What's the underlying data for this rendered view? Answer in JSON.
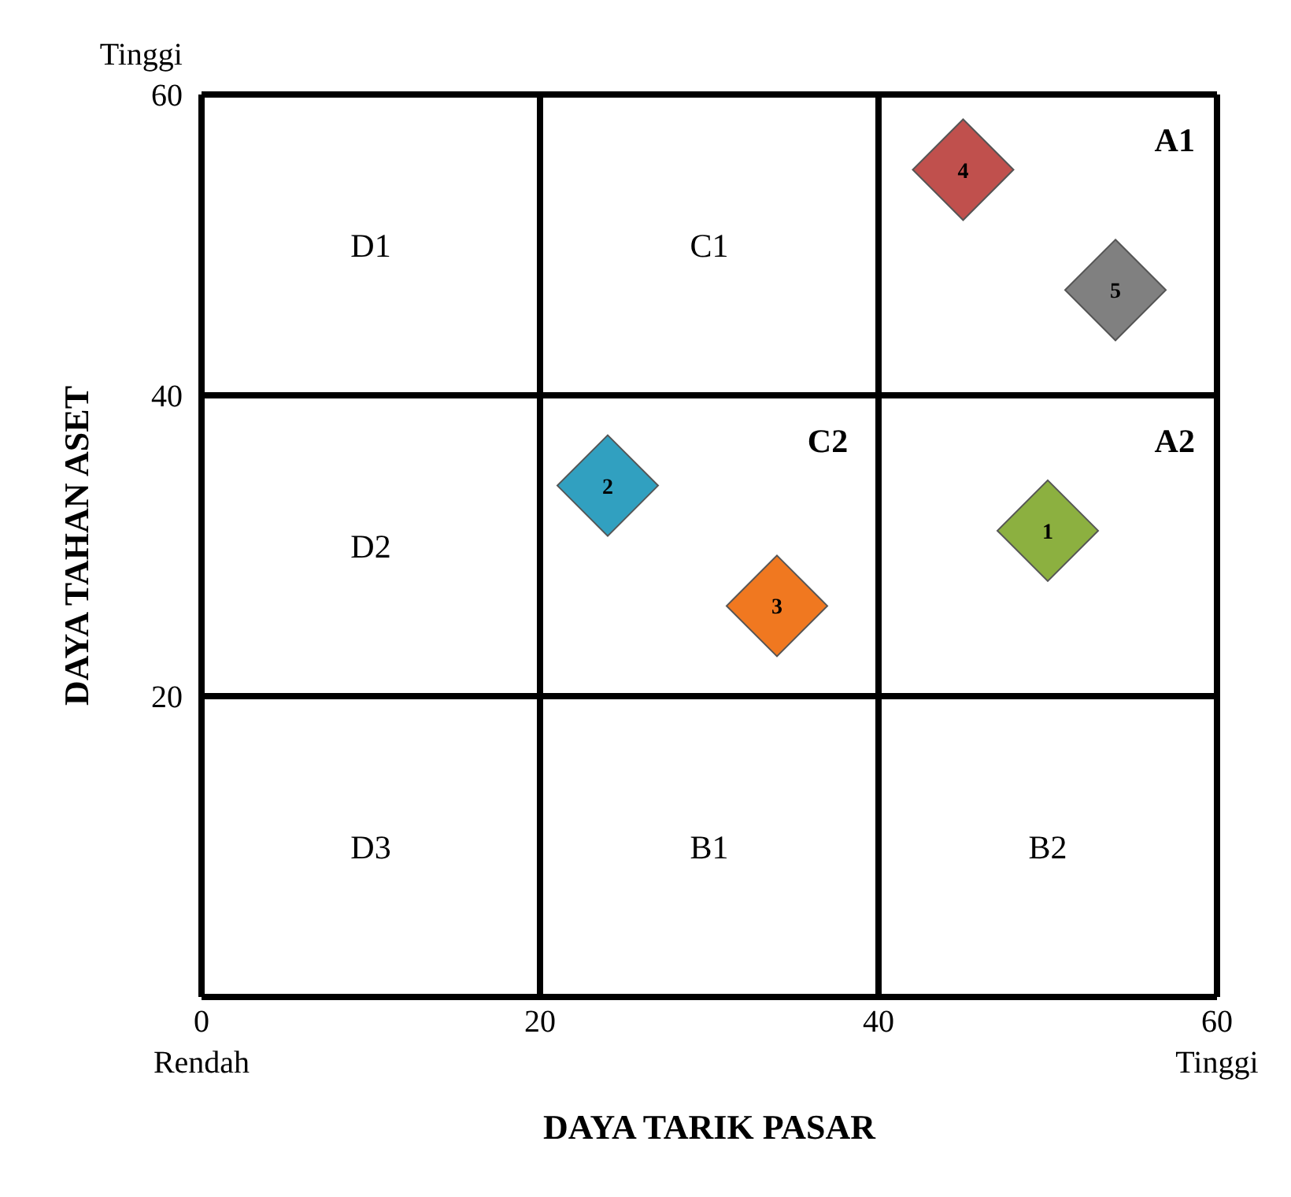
{
  "chart_data": {
    "type": "scatter",
    "xlabel": "DAYA TARIK PASAR",
    "ylabel": "DAYA TAHAN ASET",
    "series": [
      {
        "name": "4",
        "color": "#c0504d",
        "x": [
          45
        ],
        "values": [
          55
        ]
      },
      {
        "name": "5",
        "color": "#808080",
        "x": [
          54
        ],
        "values": [
          47
        ]
      },
      {
        "name": "2",
        "color": "#31a0c0",
        "x": [
          24
        ],
        "values": [
          34
        ]
      },
      {
        "name": "3",
        "color": "#f07820",
        "x": [
          34
        ],
        "values": [
          26
        ]
      },
      {
        "name": "1",
        "color": "#8cb040",
        "x": [
          50
        ],
        "values": [
          31
        ]
      }
    ],
    "marker": "diamond",
    "grid": true,
    "legend": false,
    "xlim": [
      0,
      60
    ],
    "ylim": [
      0,
      60
    ],
    "xticks": [
      {
        "value": 0,
        "label": "0\nRendah"
      },
      20,
      40,
      {
        "value": 60,
        "label": "60\nTinggi"
      }
    ],
    "yticks": [
      {
        "value": 0,
        "label": null
      },
      20,
      40,
      {
        "value": 60,
        "label": "Tinggi\n60"
      }
    ],
    "annotations": [
      "D1",
      "C1",
      "A1",
      "C2",
      "A2",
      "D2",
      "D3",
      "B1",
      "B2"
    ]
  }
}
